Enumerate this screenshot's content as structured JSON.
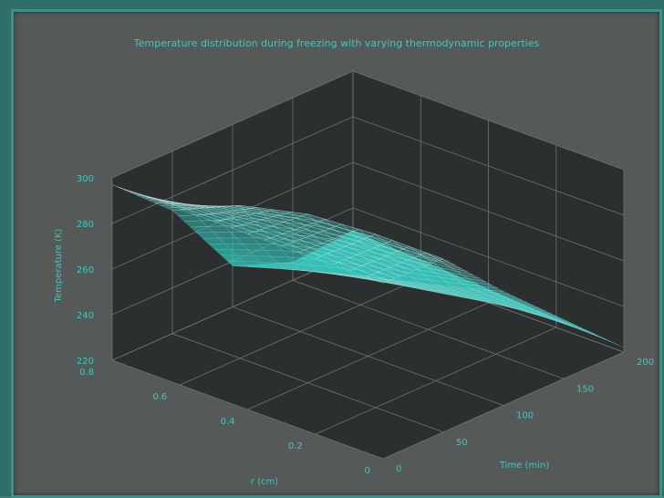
{
  "chart_data": {
    "type": "surface",
    "title": "Temperature distribution during freezing with varying thermodynamic properties",
    "xlabel": "r (cm)",
    "ylabel": "Time (min)",
    "zlabel": "Temperature (K)",
    "x_ticks": [
      "0",
      "0.2",
      "0.4",
      "0.6",
      "0.8"
    ],
    "x_range": [
      0,
      0.8
    ],
    "y_ticks": [
      "0",
      "50",
      "100",
      "150",
      "200"
    ],
    "y_range": [
      0,
      200
    ],
    "z_ticks": [
      "220",
      "240",
      "260",
      "280",
      "300"
    ],
    "z_range": [
      220,
      300
    ],
    "grid": true,
    "surface_color": "#30c6bb",
    "mesh_color": "#cfe0de",
    "axis_pane_color": "#2b2f2f",
    "series": [
      {
        "time": 0,
        "r": [
          0,
          0.2,
          0.4,
          0.6,
          0.8
        ],
        "temperature": [
          297,
          297,
          297,
          297,
          297
        ]
      },
      {
        "time": 50,
        "r": [
          0,
          0.2,
          0.4,
          0.6,
          0.8
        ],
        "temperature": [
          296,
          296,
          294,
          287,
          274
        ]
      },
      {
        "time": 100,
        "r": [
          0,
          0.2,
          0.4,
          0.6,
          0.8
        ],
        "temperature": [
          270,
          262,
          255,
          247,
          238
        ]
      },
      {
        "time": 150,
        "r": [
          0,
          0.2,
          0.4,
          0.6,
          0.8
        ],
        "temperature": [
          246,
          242,
          237,
          232,
          228
        ]
      },
      {
        "time": 200,
        "r": [
          0,
          0.2,
          0.4,
          0.6,
          0.8
        ],
        "temperature": [
          222,
          224,
          226,
          228,
          230
        ]
      }
    ]
  }
}
